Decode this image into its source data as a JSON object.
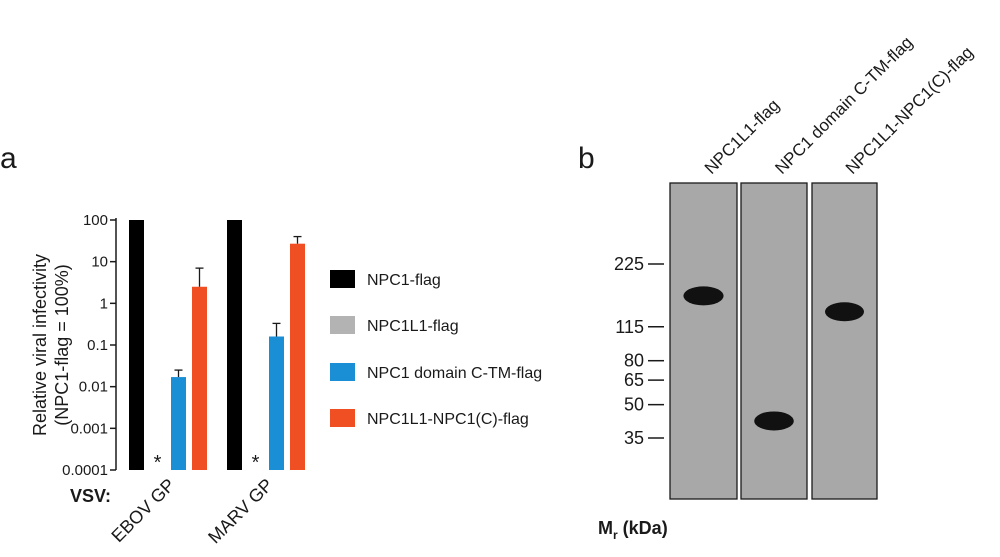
{
  "panel_a": {
    "label": "a",
    "chart_data": {
      "type": "bar",
      "ylabel_line1": "Relative viral infectivity",
      "ylabel_line2": "(NPC1-flag = 100%)",
      "yscale": "log",
      "ylim": [
        0.0001,
        100
      ],
      "yticks": [
        0.0001,
        0.001,
        0.01,
        0.1,
        1,
        10,
        100
      ],
      "ytick_labels": [
        "0.0001",
        "0.001",
        "0.01",
        "0.1",
        "1",
        "10",
        "100"
      ],
      "group_prefix": "VSV:",
      "categories": [
        "EBOV GP",
        "MARV GP"
      ],
      "series": [
        {
          "name": "NPC1-flag",
          "color": "#000000",
          "values": [
            100,
            100
          ],
          "errors": [
            0,
            0
          ],
          "marker": [
            "",
            ""
          ]
        },
        {
          "name": "NPC1L1-flag",
          "color": "#b3b3b3",
          "values": [
            0.0001,
            0.0001
          ],
          "errors": [
            0,
            0
          ],
          "marker": [
            "*",
            "*"
          ]
        },
        {
          "name": "NPC1 domain C-TM-flag",
          "color": "#1b8fd6",
          "values": [
            0.017,
            0.16
          ],
          "errors": [
            0.008,
            0.17
          ],
          "marker": [
            "",
            ""
          ]
        },
        {
          "name": "NPC1L1-NPC1(C)-flag",
          "color": "#f04e23",
          "values": [
            2.5,
            27
          ],
          "errors": [
            4.5,
            13
          ],
          "marker": [
            "",
            ""
          ]
        }
      ],
      "legend_placement": "right",
      "grid": false
    }
  },
  "panel_b": {
    "label": "b",
    "lanes": [
      "NPC1L1-flag",
      "NPC1 domain C-TM-flag",
      "NPC1L1-NPC1(C)-flag"
    ],
    "marker_unit_main": "M",
    "marker_unit_sub": "r",
    "marker_unit_suffix": " (kDa)",
    "markers_kda": [
      {
        "label": "225",
        "kda": 225
      },
      {
        "label": "115",
        "kda": 115
      },
      {
        "label": "80",
        "kda": 80
      },
      {
        "label": "65",
        "kda": 65
      },
      {
        "label": "50",
        "kda": 50
      },
      {
        "label": "35",
        "kda": 35
      }
    ],
    "bands_kda": [
      160,
      42,
      135
    ],
    "gel_color": "#a8a8a8",
    "band_color": "#111111"
  }
}
